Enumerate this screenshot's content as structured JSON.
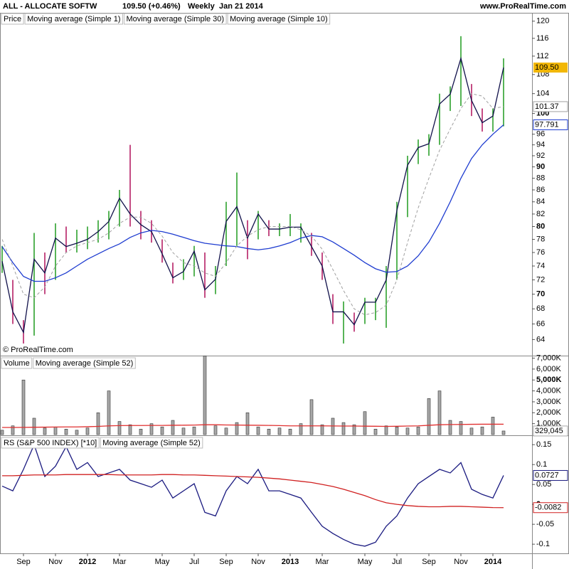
{
  "header": {
    "symbol": "ALL - ALLOCATE SOFTW",
    "change": "109.50 (+0.46%)",
    "period": "Weekly",
    "date": "Jan 21 2014",
    "site": "www.ProRealTime.com",
    "copyright": "© ProRealTime.com"
  },
  "chart_data": [
    {
      "type": "ohlc",
      "log_scale": true,
      "ylim": [
        62,
        122
      ],
      "yticks": [
        64,
        66,
        68,
        70,
        72,
        74,
        76,
        78,
        80,
        82,
        84,
        86,
        88,
        90,
        92,
        94,
        96,
        100,
        104,
        108,
        112,
        116,
        120
      ],
      "bold_ticks": [
        70,
        80,
        90,
        100
      ],
      "bars": {
        "name": "Price",
        "up_color": "#1f9a1f",
        "down_color": "#b0105a",
        "high": [
          77,
          72,
          66.5,
          79,
          76,
          80.5,
          80,
          79.5,
          80,
          81,
          82.5,
          86,
          94,
          82.5,
          81,
          78,
          74.5,
          75,
          77,
          76,
          74,
          84,
          89,
          81,
          82.5,
          81,
          80.5,
          82,
          80.5,
          79,
          76,
          70,
          69,
          67.5,
          69.5,
          69.5,
          74,
          84,
          92,
          95,
          96,
          104,
          105.5,
          116.5,
          106,
          101,
          101,
          111.5
        ],
        "low": [
          73,
          66,
          63.5,
          64.5,
          70,
          72,
          76,
          76,
          76.5,
          77.5,
          78,
          80,
          80,
          78,
          77.5,
          74.5,
          71.5,
          72,
          72.5,
          69.5,
          70,
          74,
          77,
          75,
          78,
          78.5,
          78.5,
          78.5,
          77.5,
          75.5,
          72,
          66,
          63.5,
          65,
          66,
          66.5,
          65.5,
          72,
          81.5,
          90.5,
          92,
          94,
          100.5,
          101.5,
          99.5,
          96.5,
          96.5,
          97.5
        ]
      },
      "series": [
        {
          "name": "Moving average (Simple 1)",
          "color": "#10104a",
          "last_label": "109.50",
          "label_bg": "#f2b705",
          "values": [
            74.7,
            67.6,
            64.9,
            75,
            73,
            78.2,
            76.9,
            77.4,
            78,
            79.2,
            80.8,
            84.6,
            82,
            80.3,
            79.2,
            75.8,
            72.3,
            73.2,
            76.2,
            70.6,
            72.1,
            80.8,
            83.2,
            78.2,
            82,
            79.6,
            79.6,
            79.9,
            79.9,
            76.9,
            74,
            67.6,
            67.6,
            65.9,
            68.9,
            68.9,
            72,
            82.6,
            90.3,
            93.5,
            94.2,
            101.9,
            103.9,
            111.5,
            102.6,
            98.2,
            99.5,
            109.5
          ]
        },
        {
          "name": "Moving average (Simple 30)",
          "color": "#1e3cd0",
          "last_label": "97.791",
          "values": [
            76.9,
            74.5,
            72.5,
            71.8,
            71.8,
            72.3,
            73,
            74,
            75,
            75.8,
            76.6,
            77.3,
            78.3,
            79,
            79.4,
            79.2,
            78.8,
            78.3,
            77.8,
            77.4,
            77.2,
            77,
            76.9,
            76.6,
            76.4,
            76.6,
            77,
            77.5,
            78.2,
            78.6,
            78.4,
            77.6,
            76.6,
            75.6,
            74.5,
            73.6,
            73.1,
            73.2,
            74,
            75.5,
            77.6,
            80.5,
            84,
            88,
            91.5,
            94,
            96,
            97.791
          ]
        },
        {
          "name": "Moving average (Simple 10)",
          "color": "#a0a0a0",
          "dashed": true,
          "last_label": "101.37",
          "values": [
            78,
            74,
            70,
            69.5,
            71,
            74,
            76,
            77,
            77.5,
            78,
            79,
            80.5,
            81.5,
            81.5,
            80.5,
            78.5,
            76,
            74.5,
            74,
            73,
            72.5,
            74.5,
            77,
            78.5,
            79.5,
            80,
            80,
            80,
            79.5,
            78.5,
            76.5,
            73.5,
            70.5,
            68,
            67.2,
            67.5,
            68.5,
            72,
            77.5,
            83,
            88,
            93,
            97,
            101,
            104,
            103.5,
            101,
            101.37
          ]
        }
      ]
    },
    {
      "type": "bar",
      "ylim": [
        0,
        7100000
      ],
      "yticks": [
        {
          "value": 1000000,
          "label": "1,000K"
        },
        {
          "value": 2000000,
          "label": "2,000K"
        },
        {
          "value": 3000000,
          "label": "3,000K"
        },
        {
          "value": 4000000,
          "label": "4,000K"
        },
        {
          "value": 5000000,
          "label": "5,000K"
        },
        {
          "value": 6000000,
          "label": "6,000K"
        },
        {
          "value": 7000000,
          "label": "7,000K"
        }
      ],
      "bold_ticks": [
        5000000
      ],
      "series": [
        {
          "name": "Volume",
          "color": "#a8a8a8",
          "last_label": "329,045",
          "values": [
            400000,
            800000,
            5000000,
            1500000,
            600000,
            700000,
            500000,
            400000,
            600000,
            2000000,
            4000000,
            1200000,
            900000,
            500000,
            1000000,
            700000,
            1300000,
            600000,
            700000,
            7200000,
            800000,
            600000,
            1100000,
            2000000,
            700000,
            500000,
            600000,
            500000,
            1000000,
            3200000,
            900000,
            1500000,
            1100000,
            900000,
            2100000,
            500000,
            800000,
            700000,
            600000,
            700000,
            3300000,
            4000000,
            1300000,
            1200000,
            600000,
            700000,
            1600000,
            329045
          ]
        },
        {
          "name": "Moving average (Simple 52)",
          "color": "#e03030",
          "values": [
            650000,
            650000,
            660000,
            670000,
            680000,
            690000,
            700000,
            700000,
            720000,
            750000,
            800000,
            820000,
            830000,
            830000,
            840000,
            840000,
            850000,
            860000,
            870000,
            900000,
            900000,
            880000,
            870000,
            860000,
            850000,
            840000,
            820000,
            800000,
            800000,
            800000,
            800000,
            790000,
            780000,
            780000,
            770000,
            760000,
            750000,
            760000,
            780000,
            800000,
            850000,
            900000,
            920000,
            930000,
            940000,
            950000,
            950000,
            950000
          ]
        }
      ]
    },
    {
      "type": "line",
      "ylim": [
        -0.123,
        0.17
      ],
      "yticks": [
        -0.1,
        -0.05,
        0,
        0.05,
        0.1,
        0.15
      ],
      "bold_ticks": [
        0
      ],
      "categories": [
        null,
        null,
        "Sep",
        null,
        null,
        "Nov",
        null,
        null,
        "2012",
        null,
        null,
        "Mar",
        null,
        null,
        null,
        "May",
        null,
        null,
        "Jul",
        null,
        null,
        "Sep",
        null,
        null,
        "Nov",
        null,
        null,
        "2013",
        null,
        null,
        "Mar",
        null,
        null,
        null,
        "May",
        null,
        null,
        "Jul",
        null,
        null,
        "Sep",
        null,
        null,
        "Nov",
        null,
        null,
        "2014",
        null
      ],
      "series": [
        {
          "name": "RS (S&P 500 INDEX) [*10]",
          "color": "#1a1a80",
          "last_label": "0.0727",
          "values": [
            0.046,
            0.034,
            0.088,
            0.15,
            0.07,
            0.096,
            0.145,
            0.088,
            0.105,
            0.07,
            0.079,
            0.088,
            0.061,
            0.052,
            0.043,
            0.061,
            0.016,
            0.034,
            0.052,
            -0.02,
            -0.029,
            0.034,
            0.07,
            0.052,
            0.088,
            0.034,
            0.034,
            0.025,
            0.016,
            -0.02,
            -0.055,
            -0.073,
            -0.088,
            -0.1,
            -0.105,
            -0.095,
            -0.055,
            -0.029,
            0.016,
            0.052,
            0.07,
            0.088,
            0.079,
            0.105,
            0.038,
            0.025,
            0.016,
            0.0727
          ]
        },
        {
          "name": "Moving average (Simple 52)",
          "color": "#d02020",
          "last_label": "-0.0082",
          "values": [
            0.072,
            0.072,
            0.073,
            0.074,
            0.074,
            0.074,
            0.075,
            0.075,
            0.075,
            0.075,
            0.075,
            0.074,
            0.074,
            0.074,
            0.074,
            0.075,
            0.075,
            0.074,
            0.074,
            0.073,
            0.072,
            0.071,
            0.07,
            0.069,
            0.068,
            0.066,
            0.064,
            0.061,
            0.058,
            0.055,
            0.05,
            0.045,
            0.038,
            0.03,
            0.022,
            0.012,
            0.004,
            0,
            -0.003,
            -0.005,
            -0.006,
            -0.006,
            -0.005,
            -0.005,
            -0.006,
            -0.007,
            -0.008,
            -0.0082
          ]
        }
      ]
    }
  ]
}
